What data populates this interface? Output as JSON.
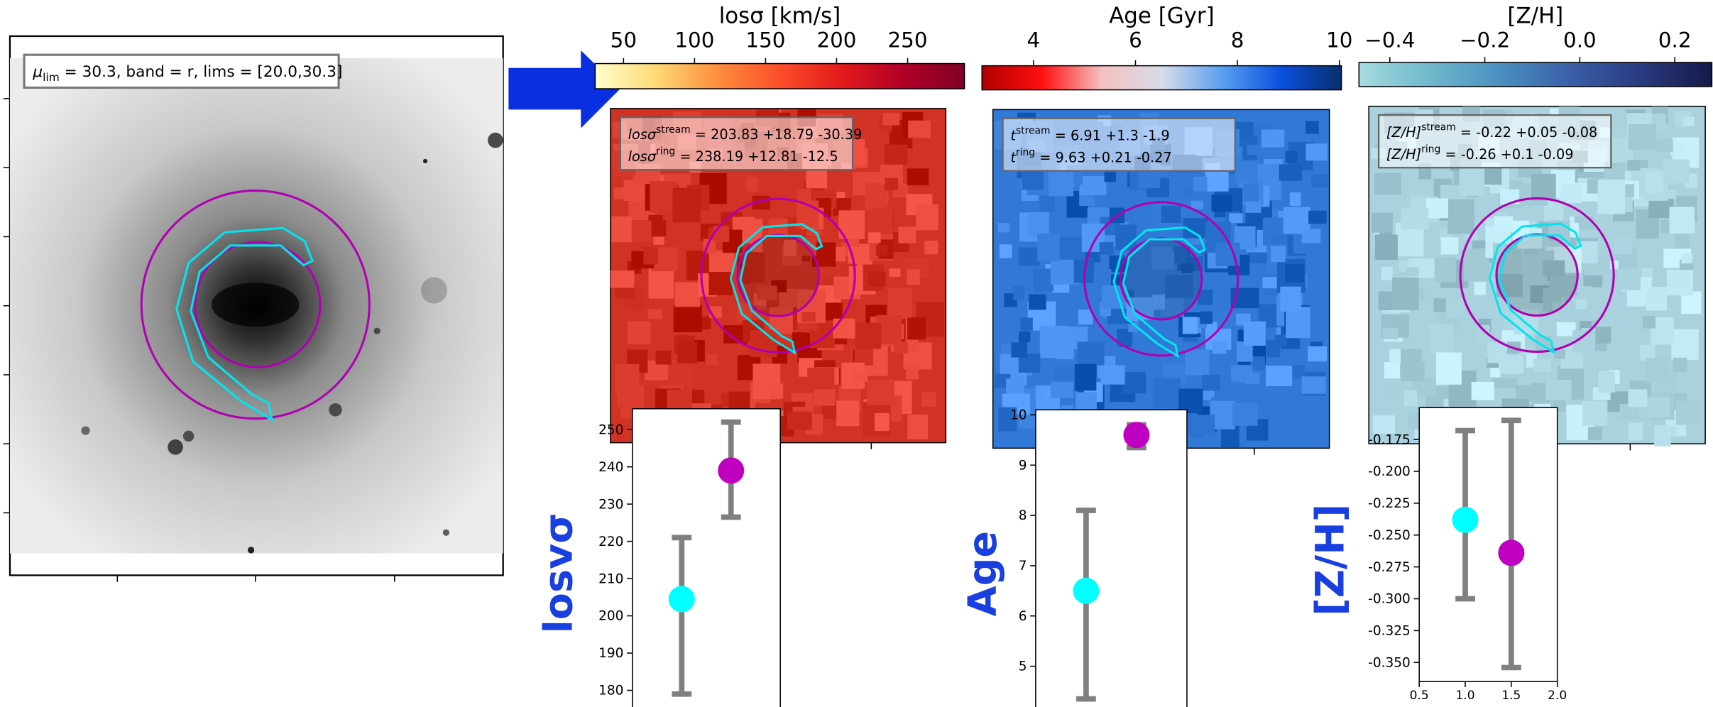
{
  "image_panel": {
    "label": {
      "symbol": "μ",
      "sub": "lim",
      "text": " = 30.3, band = r, lims = [20.0,30.3]"
    }
  },
  "maps": [
    {
      "colorbar": {
        "label": "losσ [km/s]",
        "clim": [
          30,
          290
        ],
        "ticks": [
          50,
          100,
          150,
          200,
          250
        ],
        "colors": [
          "#ffffcc",
          "#fed976",
          "#fd8d3c",
          "#fc4e2a",
          "#e31a1c",
          "#b10026",
          "#800026"
        ]
      },
      "annotation": [
        {
          "symbol": "losσ",
          "sup": "stream",
          "text": " = 203.83 +18.79 -30.39"
        },
        {
          "symbol": "losσ",
          "sup": "ring",
          "text": " = 238.19 +12.81 -12.5"
        }
      ]
    },
    {
      "colorbar": {
        "label": "Age [Gyr]",
        "clim": [
          2.99,
          10.04
        ],
        "ticks": [
          4,
          6,
          8,
          10
        ],
        "colors": [
          "#b00000",
          "#ff1010",
          "#f4c0c0",
          "#d8dce8",
          "#5aa0f0",
          "#0a50e0",
          "#08306b"
        ]
      },
      "annotation": [
        {
          "symbol": "t",
          "sup": "stream",
          "text": " = 6.91 +1.3 -1.9"
        },
        {
          "symbol": "t",
          "sup": "ring",
          "text": " = 9.63 +0.21 -0.27"
        }
      ]
    },
    {
      "colorbar": {
        "label": "[Z/H]",
        "clim": [
          -0.465,
          0.278
        ],
        "ticks": [
          {
            "value": -0.4,
            "label": "−0.4"
          },
          {
            "value": -0.2,
            "label": "−0.2"
          },
          {
            "value": 0,
            "label": "0.0"
          },
          0.2
        ],
        "colors": [
          "#a6dbe0",
          "#6fb8cc",
          "#4a8fc0",
          "#3a5fa8",
          "#2a3a80",
          "#141a48"
        ]
      },
      "annotation": [
        {
          "symbol": "[Z/H]",
          "sup": "stream",
          "text": " = -0.22 +0.05 -0.08"
        },
        {
          "symbol": "[Z/H]",
          "sup": "ring",
          "text": " = -0.26 +0.1 -0.09"
        }
      ]
    }
  ],
  "chart_data": [
    {
      "type": "errorbar",
      "ylabel": "losvσ",
      "xlim": [
        0.5,
        2
      ],
      "ylim": [
        175,
        255.6
      ],
      "yticks": [
        180,
        190,
        200,
        210,
        220,
        230,
        240,
        250
      ],
      "points": [
        {
          "x": 1,
          "y": 204.5,
          "yerr": [
            25.5,
            16.5
          ],
          "color": "#00ffff"
        },
        {
          "x": 1.5,
          "y": 239,
          "yerr": [
            12.5,
            13
          ],
          "color": "#c000c0"
        }
      ]
    },
    {
      "type": "errorbar",
      "ylabel": "Age",
      "xlim": [
        0.5,
        2
      ],
      "ylim": [
        4.15,
        10.1
      ],
      "yticks": [
        5,
        6,
        7,
        8,
        9,
        10
      ],
      "points": [
        {
          "x": 1,
          "y": 6.5,
          "yerr": [
            2.15,
            1.6
          ],
          "color": "#00ffff"
        },
        {
          "x": 1.5,
          "y": 9.6,
          "yerr": [
            0.25,
            0.2
          ],
          "color": "#c000c0"
        }
      ]
    },
    {
      "type": "errorbar",
      "ylabel": "[Z/H]",
      "xlim": [
        0.5,
        2
      ],
      "ylim": [
        -0.365,
        -0.15
      ],
      "xticks": [
        0.5,
        {
          "value": 1,
          "label": "1.0"
        },
        1.5,
        {
          "value": 2,
          "label": "2.0"
        }
      ],
      "yticks": [
        {
          "value": -0.175,
          "label": "-0.175"
        },
        {
          "value": -0.2,
          "label": "-0.200"
        },
        {
          "value": -0.225,
          "label": "-0.225"
        },
        {
          "value": -0.25,
          "label": "-0.250"
        },
        {
          "value": -0.275,
          "label": "-0.275"
        },
        {
          "value": -0.3,
          "label": "-0.300"
        },
        {
          "value": -0.325,
          "label": "-0.325"
        },
        {
          "value": -0.35,
          "label": "-0.350"
        }
      ],
      "points": [
        {
          "x": 1,
          "y": -0.238,
          "yerr": [
            0.062,
            0.07
          ],
          "color": "#00ffff"
        },
        {
          "x": 1.5,
          "y": -0.264,
          "yerr": [
            0.09,
            0.104
          ],
          "color": "#c000c0"
        }
      ]
    }
  ]
}
